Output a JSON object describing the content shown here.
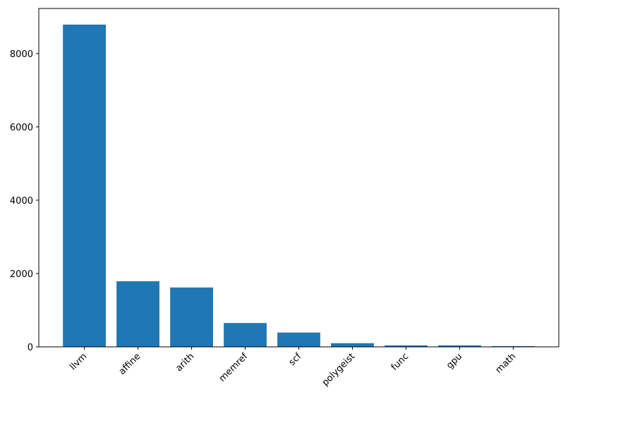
{
  "chart_data": {
    "type": "bar",
    "categories": [
      "llvm",
      "affine",
      "arith",
      "memref",
      "scf",
      "polygeist",
      "func",
      "gpu",
      "math"
    ],
    "values": [
      8790,
      1790,
      1620,
      650,
      390,
      100,
      40,
      40,
      20
    ],
    "color": "#1f77b4",
    "ylim": [
      0,
      9230
    ],
    "yticks": [
      0,
      2000,
      4000,
      6000,
      8000
    ],
    "grid": false
  }
}
